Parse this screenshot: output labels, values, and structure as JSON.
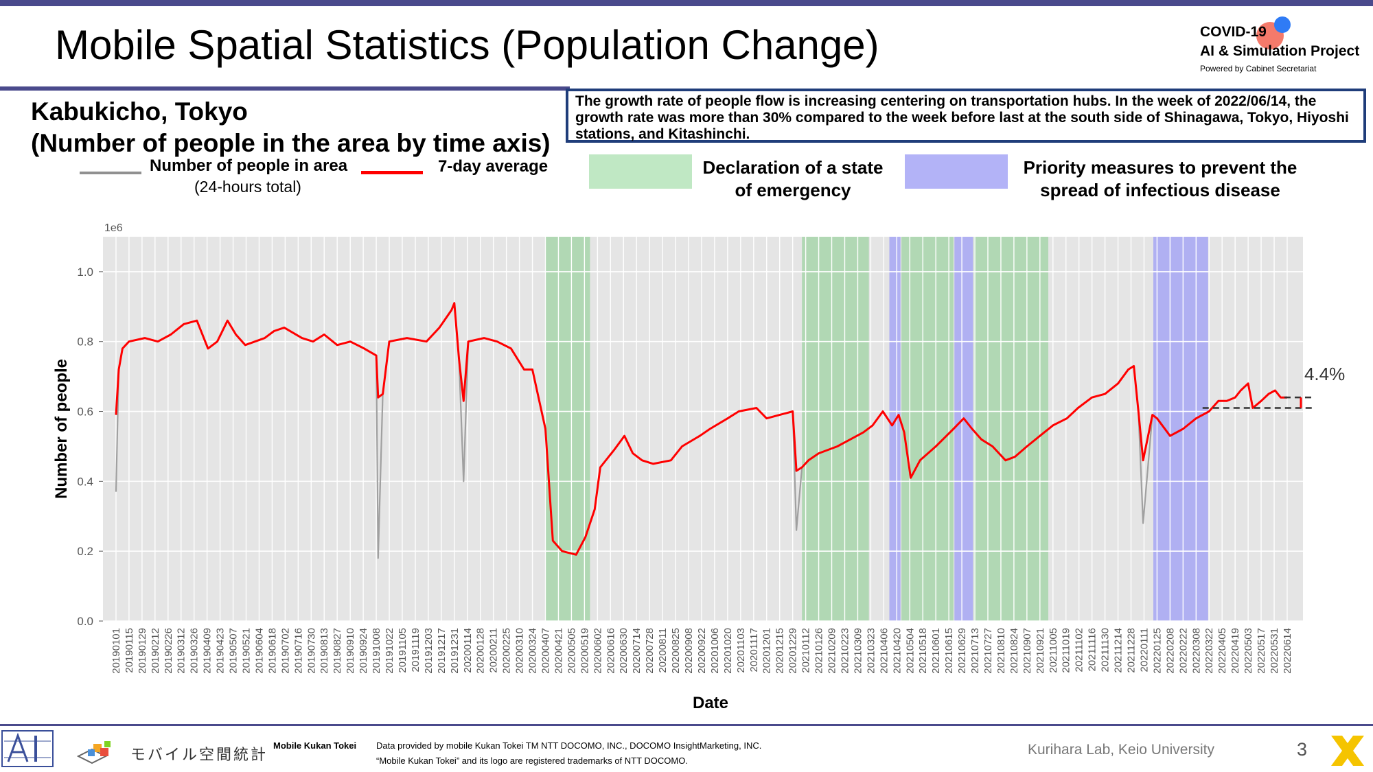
{
  "header": {
    "title": "Mobile Spatial Statistics (Population Change)",
    "logo": {
      "line1": "COVID-19",
      "line2": "AI & Simulation Project",
      "line3": "Powered by Cabinet Secretariat"
    }
  },
  "subtitle": {
    "line1": "Kabukicho, Tokyo",
    "line2": "(Number of people in the area by time axis)"
  },
  "callout": "The growth rate of people flow is increasing centering on transportation hubs. In the week of 2022/06/14, the growth rate was more than 30% compared to the week before last at the south side of Shinagawa, Tokyo, Hiyoshi stations, and Kitashinchi.",
  "legend": {
    "gray_label": "Number of people in area",
    "gray_sub": "(24-hours total)",
    "red_label": "7-day average",
    "green_label_1": "Declaration of a state",
    "green_label_2": "of emergency",
    "blue_label_1": "Priority measures to prevent the",
    "blue_label_2": "spread of infectious disease"
  },
  "colors": {
    "daily": "#a0a0a0",
    "average": "#ff0000",
    "emergency": "#9bd3a0",
    "priority": "#9d9df5",
    "plot_bg": "#e5e5e5",
    "accent": "#4a4a8c"
  },
  "chart_data": {
    "type": "line",
    "title": "",
    "xlabel": "Date",
    "ylabel": "Number of people",
    "y_scale_label": "1e6",
    "ylim": [
      0,
      1.1
    ],
    "yticks": [
      0.0,
      0.2,
      0.4,
      0.6,
      0.8,
      1.0
    ],
    "ytick_labels": [
      "0.0",
      "0.2",
      "0.4",
      "0.6",
      "0.8",
      "1.0"
    ],
    "xlim": [
      "2018-12-18",
      "2022-07-01"
    ],
    "x_tick_labels": [
      "20190101",
      "20190115",
      "20190129",
      "20190212",
      "20190226",
      "20190312",
      "20190326",
      "20190409",
      "20190423",
      "20190507",
      "20190521",
      "20190604",
      "20190618",
      "20190702",
      "20190716",
      "20190730",
      "20190813",
      "20190827",
      "20190910",
      "20190924",
      "20191008",
      "20191022",
      "20191105",
      "20191119",
      "20191203",
      "20191217",
      "20191231",
      "20200114",
      "20200128",
      "20200211",
      "20200225",
      "20200310",
      "20200324",
      "20200407",
      "20200421",
      "20200505",
      "20200519",
      "20200602",
      "20200616",
      "20200630",
      "20200714",
      "20200728",
      "20200811",
      "20200825",
      "20200908",
      "20200922",
      "20201006",
      "20201020",
      "20201103",
      "20201117",
      "20201201",
      "20201215",
      "20201229",
      "20210112",
      "20210126",
      "20210209",
      "20210223",
      "20210309",
      "20210323",
      "20210406",
      "20210420",
      "20210504",
      "20210518",
      "20210601",
      "20210615",
      "20210629",
      "20210713",
      "20210727",
      "20210810",
      "20210824",
      "20210907",
      "20210921",
      "20211005",
      "20211019",
      "20211102",
      "20211116",
      "20211130",
      "20211214",
      "20211228",
      "20220111",
      "20220125",
      "20220208",
      "20220222",
      "20220308",
      "20220322",
      "20220405",
      "20220419",
      "20220503",
      "20220517",
      "20220531",
      "20220614"
    ],
    "grid": true,
    "shaded_periods": [
      {
        "type": "emergency",
        "start": "2020-04-07",
        "end": "2020-05-25"
      },
      {
        "type": "emergency",
        "start": "2021-01-08",
        "end": "2021-03-21"
      },
      {
        "type": "priority",
        "start": "2021-04-12",
        "end": "2021-04-24"
      },
      {
        "type": "emergency",
        "start": "2021-04-25",
        "end": "2021-06-20"
      },
      {
        "type": "priority",
        "start": "2021-06-21",
        "end": "2021-07-11"
      },
      {
        "type": "emergency",
        "start": "2021-07-12",
        "end": "2021-09-30"
      },
      {
        "type": "priority",
        "start": "2022-01-21",
        "end": "2022-03-21"
      }
    ],
    "series": [
      {
        "name": "7-day average",
        "x": [
          "2019-01-01",
          "2019-01-04",
          "2019-01-08",
          "2019-01-15",
          "2019-02-01",
          "2019-02-15",
          "2019-03-01",
          "2019-03-15",
          "2019-03-29",
          "2019-04-10",
          "2019-04-20",
          "2019-05-01",
          "2019-05-10",
          "2019-05-20",
          "2019-06-10",
          "2019-06-20",
          "2019-07-01",
          "2019-07-20",
          "2019-08-01",
          "2019-08-13",
          "2019-08-27",
          "2019-09-10",
          "2019-09-25",
          "2019-10-08",
          "2019-10-10",
          "2019-10-15",
          "2019-10-22",
          "2019-11-10",
          "2019-12-01",
          "2019-12-15",
          "2019-12-28",
          "2019-12-31",
          "2020-01-05",
          "2020-01-10",
          "2020-01-15",
          "2020-02-01",
          "2020-02-15",
          "2020-03-01",
          "2020-03-15",
          "2020-03-24",
          "2020-04-07",
          "2020-04-15",
          "2020-04-25",
          "2020-05-10",
          "2020-05-20",
          "2020-05-30",
          "2020-06-05",
          "2020-06-20",
          "2020-07-01",
          "2020-07-10",
          "2020-07-20",
          "2020-08-01",
          "2020-08-20",
          "2020-09-01",
          "2020-09-20",
          "2020-10-01",
          "2020-10-20",
          "2020-11-01",
          "2020-11-20",
          "2020-12-01",
          "2020-12-15",
          "2020-12-29",
          "2021-01-02",
          "2021-01-08",
          "2021-01-15",
          "2021-01-26",
          "2021-02-15",
          "2021-03-01",
          "2021-03-15",
          "2021-03-25",
          "2021-04-05",
          "2021-04-15",
          "2021-04-22",
          "2021-04-28",
          "2021-05-05",
          "2021-05-15",
          "2021-06-01",
          "2021-06-20",
          "2021-07-01",
          "2021-07-10",
          "2021-07-20",
          "2021-08-01",
          "2021-08-15",
          "2021-08-25",
          "2021-09-07",
          "2021-09-21",
          "2021-10-05",
          "2021-10-20",
          "2021-11-01",
          "2021-11-16",
          "2021-11-30",
          "2021-12-14",
          "2021-12-25",
          "2021-12-31",
          "2022-01-05",
          "2022-01-10",
          "2022-01-20",
          "2022-01-25",
          "2022-02-08",
          "2022-02-22",
          "2022-03-08",
          "2022-03-22",
          "2022-04-01",
          "2022-04-10",
          "2022-04-19",
          "2022-04-25",
          "2022-05-03",
          "2022-05-08",
          "2022-05-17",
          "2022-05-25",
          "2022-06-01",
          "2022-06-07",
          "2022-06-14"
        ],
        "values": [
          0.59,
          0.72,
          0.78,
          0.8,
          0.81,
          0.8,
          0.82,
          0.85,
          0.86,
          0.78,
          0.8,
          0.86,
          0.82,
          0.79,
          0.81,
          0.83,
          0.84,
          0.81,
          0.8,
          0.82,
          0.79,
          0.8,
          0.78,
          0.76,
          0.64,
          0.65,
          0.8,
          0.81,
          0.8,
          0.84,
          0.89,
          0.91,
          0.75,
          0.63,
          0.8,
          0.81,
          0.8,
          0.78,
          0.72,
          0.72,
          0.55,
          0.23,
          0.2,
          0.19,
          0.24,
          0.32,
          0.44,
          0.49,
          0.53,
          0.48,
          0.46,
          0.45,
          0.46,
          0.5,
          0.53,
          0.55,
          0.58,
          0.6,
          0.61,
          0.58,
          0.59,
          0.6,
          0.43,
          0.44,
          0.46,
          0.48,
          0.5,
          0.52,
          0.54,
          0.56,
          0.6,
          0.56,
          0.59,
          0.54,
          0.41,
          0.46,
          0.5,
          0.55,
          0.58,
          0.55,
          0.52,
          0.5,
          0.46,
          0.47,
          0.5,
          0.53,
          0.56,
          0.58,
          0.61,
          0.64,
          0.65,
          0.68,
          0.72,
          0.73,
          0.6,
          0.46,
          0.59,
          0.58,
          0.53,
          0.55,
          0.58,
          0.6,
          0.63,
          0.63,
          0.64,
          0.66,
          0.68,
          0.61,
          0.63,
          0.65,
          0.66,
          0.64,
          0.64
        ]
      },
      {
        "name": "Number of people in area",
        "x": [
          "2019-01-01",
          "2019-01-04",
          "2019-01-08",
          "2019-01-15",
          "2019-02-01",
          "2019-02-15",
          "2019-03-01",
          "2019-03-15",
          "2019-03-29",
          "2019-04-10",
          "2019-04-20",
          "2019-05-01",
          "2019-05-10",
          "2019-05-20",
          "2019-06-10",
          "2019-06-20",
          "2019-07-01",
          "2019-07-20",
          "2019-08-01",
          "2019-08-13",
          "2019-08-27",
          "2019-09-10",
          "2019-09-25",
          "2019-10-08",
          "2019-10-10",
          "2019-10-15",
          "2019-10-22",
          "2019-11-10",
          "2019-12-01",
          "2019-12-15",
          "2019-12-28",
          "2019-12-31",
          "2020-01-05",
          "2020-01-10",
          "2020-01-15",
          "2020-02-01",
          "2020-02-15",
          "2020-03-01",
          "2020-03-15",
          "2020-03-24",
          "2020-04-07",
          "2020-04-15",
          "2020-04-25",
          "2020-05-10",
          "2020-05-20",
          "2020-05-30",
          "2020-06-05",
          "2020-06-20",
          "2020-07-01",
          "2020-07-10",
          "2020-07-20",
          "2020-08-01",
          "2020-08-20",
          "2020-09-01",
          "2020-09-20",
          "2020-10-01",
          "2020-10-20",
          "2020-11-01",
          "2020-11-20",
          "2020-12-01",
          "2020-12-15",
          "2020-12-29",
          "2021-01-02",
          "2021-01-08",
          "2021-01-15",
          "2021-01-26",
          "2021-02-15",
          "2021-03-01",
          "2021-03-15",
          "2021-03-25",
          "2021-04-05",
          "2021-04-15",
          "2021-04-22",
          "2021-04-28",
          "2021-05-05",
          "2021-05-15",
          "2021-06-01",
          "2021-06-20",
          "2021-07-01",
          "2021-07-10",
          "2021-07-20",
          "2021-08-01",
          "2021-08-15",
          "2021-08-25",
          "2021-09-07",
          "2021-09-21",
          "2021-10-05",
          "2021-10-20",
          "2021-11-01",
          "2021-11-16",
          "2021-11-30",
          "2021-12-14",
          "2021-12-25",
          "2021-12-31",
          "2022-01-05",
          "2022-01-10",
          "2022-01-20",
          "2022-01-25",
          "2022-02-08",
          "2022-02-22",
          "2022-03-08",
          "2022-03-22",
          "2022-04-01",
          "2022-04-10",
          "2022-04-19",
          "2022-04-25",
          "2022-05-03",
          "2022-05-08",
          "2022-05-17",
          "2022-05-25",
          "2022-06-01",
          "2022-06-07",
          "2022-06-14"
        ],
        "values": [
          0.37,
          0.72,
          0.78,
          0.8,
          0.81,
          0.8,
          0.82,
          0.85,
          0.86,
          0.78,
          0.8,
          0.86,
          0.82,
          0.79,
          0.81,
          0.83,
          0.84,
          0.81,
          0.8,
          0.82,
          0.79,
          0.8,
          0.78,
          0.76,
          0.18,
          0.65,
          0.8,
          0.81,
          0.8,
          0.84,
          0.89,
          0.91,
          0.75,
          0.4,
          0.8,
          0.81,
          0.8,
          0.78,
          0.72,
          0.72,
          0.55,
          0.23,
          0.2,
          0.19,
          0.24,
          0.32,
          0.44,
          0.49,
          0.53,
          0.48,
          0.46,
          0.45,
          0.46,
          0.5,
          0.53,
          0.55,
          0.58,
          0.6,
          0.61,
          0.58,
          0.59,
          0.6,
          0.26,
          0.44,
          0.46,
          0.48,
          0.5,
          0.52,
          0.54,
          0.56,
          0.6,
          0.56,
          0.59,
          0.54,
          0.41,
          0.46,
          0.5,
          0.55,
          0.58,
          0.55,
          0.52,
          0.5,
          0.46,
          0.47,
          0.5,
          0.53,
          0.56,
          0.58,
          0.61,
          0.64,
          0.65,
          0.68,
          0.72,
          0.73,
          0.6,
          0.28,
          0.59,
          0.58,
          0.53,
          0.55,
          0.58,
          0.6,
          0.63,
          0.63,
          0.64,
          0.66,
          0.68,
          0.61,
          0.63,
          0.65,
          0.66,
          0.64,
          0.64
        ]
      }
    ],
    "reference_line": 0.61,
    "annotation": {
      "text": "4.4%",
      "date": "2022-06-14"
    }
  },
  "footer": {
    "mobile_logo_text": "モバイル空間統計",
    "brand_label": "Mobile Kukan Tokei",
    "credit_1": "Data provided by mobile Kukan Tokei TM NTT DOCOMO, INC., DOCOMO InsightMarketing, INC.",
    "credit_2": "“Mobile Kukan Tokei” and its logo are registered trademarks of NTT DOCOMO.",
    "lab": "Kurihara Lab, Keio University",
    "page_number": "3"
  }
}
